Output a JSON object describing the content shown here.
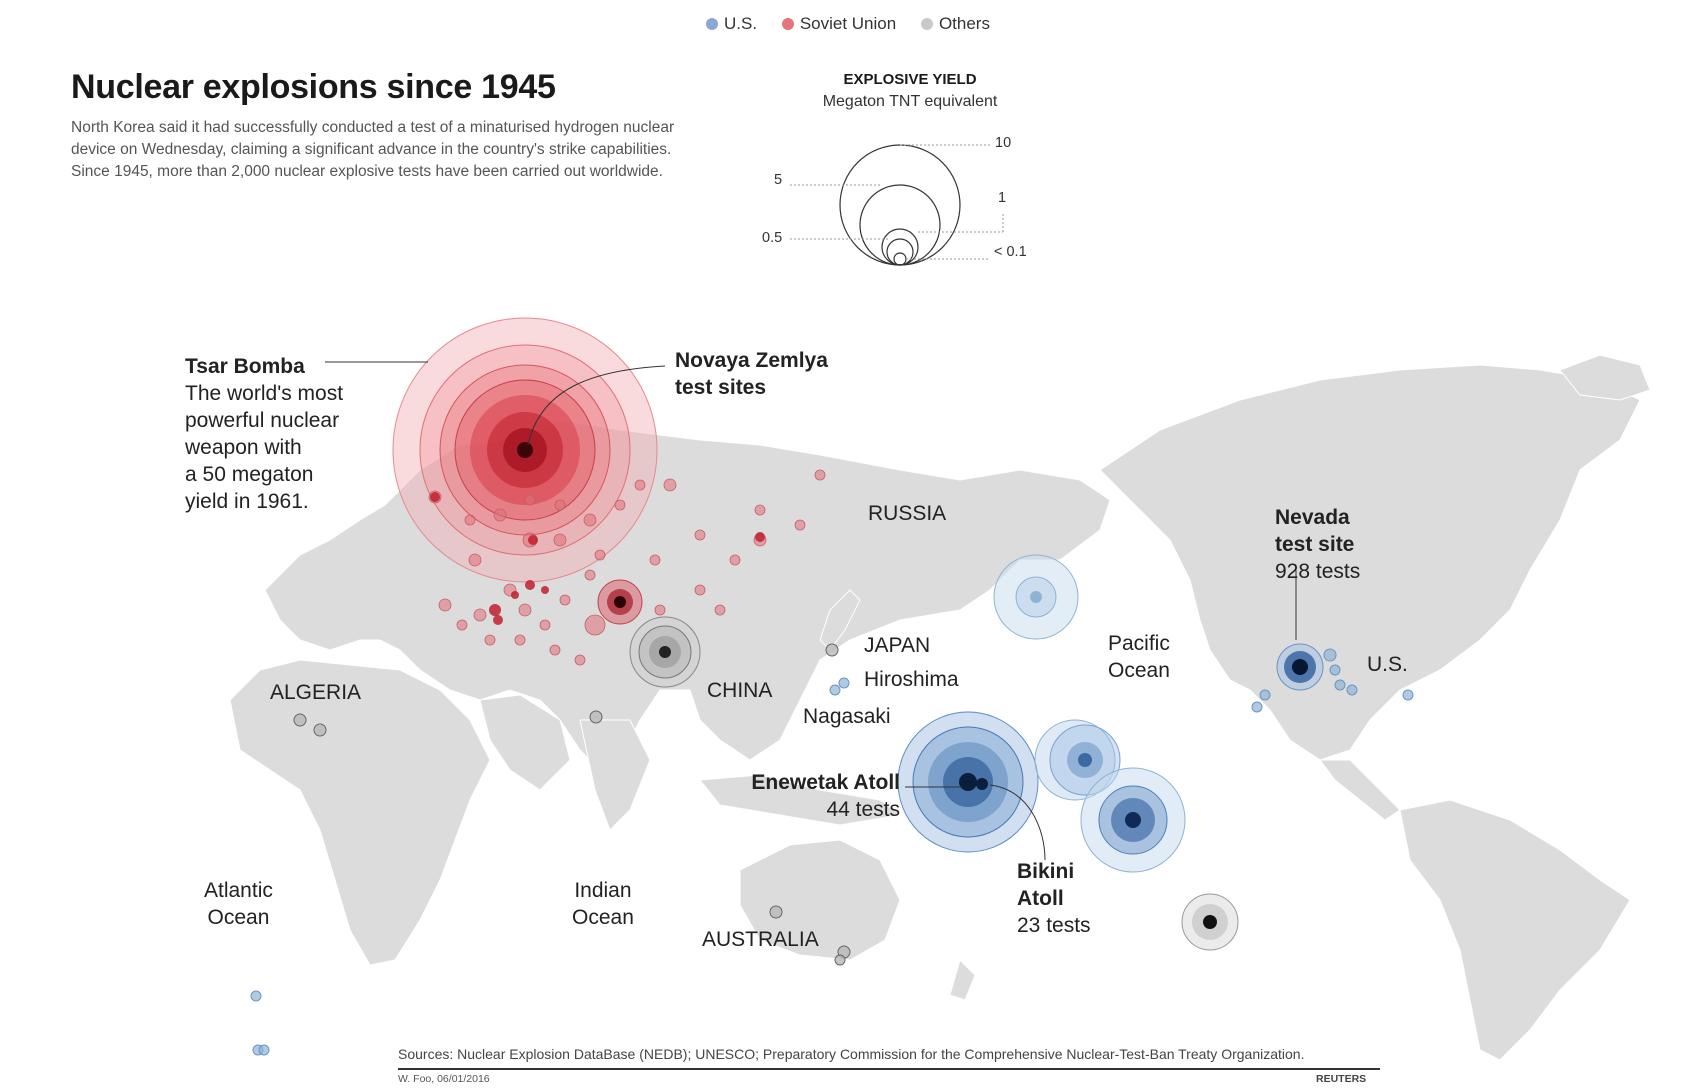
{
  "legend": [
    {
      "label": "U.S.",
      "color": "#8aa8d6"
    },
    {
      "label": "Soviet Union",
      "color": "#e8737a"
    },
    {
      "label": "Others",
      "color": "#c9c9c9"
    }
  ],
  "title": "Nuclear explosions since 1945",
  "subtitle": [
    "North Korea said it had successfully conducted a test of a minaturised hydrogen nuclear",
    "device on Wednesday, claiming a significant advance in the country's strike capabilities.",
    "Since 1945, more than 2,000 nuclear explosive tests have been carried out worldwide."
  ],
  "yield_legend": {
    "title": "EXPLOSIVE YIELD",
    "subtitle": "Megaton TNT equivalent",
    "labels": [
      "10",
      "5",
      "1",
      "0.5",
      "< 0.1"
    ]
  },
  "annotations": {
    "tsar_title": "Tsar Bomba",
    "tsar_text": [
      "The world's most",
      "powerful nuclear",
      "weapon with",
      "a 50 megaton",
      "yield in 1961."
    ],
    "novaya": [
      "Novaya Zemlya",
      "test sites"
    ],
    "nevada": [
      "Nevada",
      "test site"
    ],
    "nevada_count": "928 tests",
    "enewetak": "Enewetak Atoll",
    "enewetak_count": "44 tests",
    "bikini": [
      "Bikini",
      "Atoll"
    ],
    "bikini_count": "23 tests"
  },
  "places": {
    "russia": "RUSSIA",
    "japan": "JAPAN",
    "hiroshima": "Hiroshima",
    "nagasaki": "Nagasaki",
    "china": "CHINA",
    "algeria": "ALGERIA",
    "us": "U.S.",
    "australia": "AUSTRALIA",
    "pacific": [
      "Pacific",
      "Ocean"
    ],
    "atlantic": [
      "Atlantic",
      "Ocean"
    ],
    "indian": [
      "Indian",
      "Ocean"
    ]
  },
  "sources": "Sources: Nuclear Explosion DataBase (NEDB); UNESCO; Preparatory Commission for the Comprehensive Nuclear-Test-Ban Treaty Organization.",
  "credit": "W. Foo, 06/01/2016",
  "reuters": "REUTERS"
}
